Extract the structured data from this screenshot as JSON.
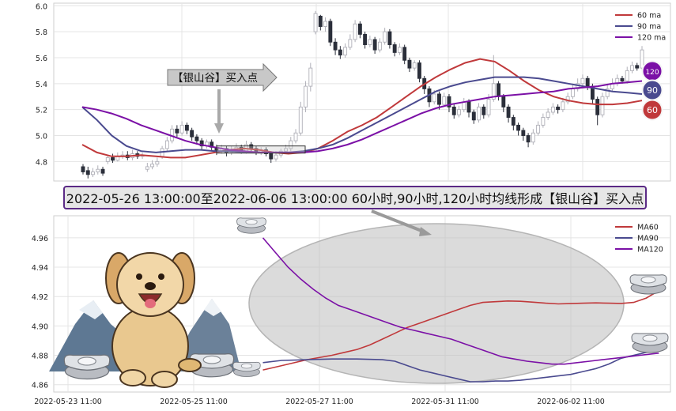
{
  "colors": {
    "ma60": "#c0393b",
    "ma90": "#4a4a8f",
    "ma120": "#7b10a6",
    "up_candle": "#b0b0b8",
    "down_candle": "#2b2f3a",
    "grid": "#e4e4e4"
  },
  "banner": {
    "text": "2022-05-26 13:00:00至2022-06-06 13:00:00 60小时,90小时,120小时均线形成【银山谷】买入点"
  },
  "top_callout": {
    "text": "【银山谷】买入点"
  },
  "badges": [
    {
      "label": "120",
      "color": "#7b10a6"
    },
    {
      "label": "90",
      "color": "#4a4a8f"
    },
    {
      "label": "60",
      "color": "#c0393b"
    }
  ],
  "chart_data": [
    {
      "type": "line",
      "panel": "candlestick-with-ma",
      "ylim": [
        4.65,
        6.02
      ],
      "yticks": [
        "6.0",
        "5.8",
        "5.6",
        "5.4",
        "5.2",
        "5.0",
        "4.8"
      ],
      "ytick_values": [
        6.0,
        5.8,
        5.6,
        5.4,
        5.2,
        5.0,
        4.8
      ],
      "legend_position": "top-right",
      "series": [
        {
          "name": "60 ma",
          "key": "ma60",
          "values": [
            4.93,
            4.87,
            4.84,
            4.84,
            4.85,
            4.84,
            4.83,
            4.83,
            4.85,
            4.87,
            4.89,
            4.9,
            4.89,
            4.87,
            4.86,
            4.87,
            4.9,
            4.96,
            5.03,
            5.08,
            5.14,
            5.22,
            5.3,
            5.38,
            5.45,
            5.51,
            5.56,
            5.59,
            5.57,
            5.5,
            5.42,
            5.35,
            5.3,
            5.27,
            5.25,
            5.24,
            5.24,
            5.25,
            5.27
          ]
        },
        {
          "name": "90 ma",
          "key": "ma90",
          "values": [
            5.22,
            5.12,
            5.0,
            4.92,
            4.88,
            4.87,
            4.88,
            4.89,
            4.89,
            4.88,
            4.88,
            4.87,
            4.87,
            4.87,
            4.87,
            4.88,
            4.9,
            4.93,
            4.98,
            5.04,
            5.1,
            5.16,
            5.22,
            5.28,
            5.34,
            5.38,
            5.41,
            5.43,
            5.45,
            5.45,
            5.45,
            5.44,
            5.42,
            5.4,
            5.38,
            5.36,
            5.34,
            5.33,
            5.32
          ]
        },
        {
          "name": "120 ma",
          "key": "ma120",
          "values": [
            5.22,
            5.2,
            5.17,
            5.13,
            5.08,
            5.04,
            5.0,
            4.96,
            4.93,
            4.91,
            4.89,
            4.88,
            4.87,
            4.87,
            4.87,
            4.87,
            4.88,
            4.9,
            4.93,
            4.97,
            5.02,
            5.07,
            5.12,
            5.17,
            5.21,
            5.24,
            5.26,
            5.28,
            5.3,
            5.31,
            5.32,
            5.33,
            5.34,
            5.36,
            5.37,
            5.38,
            5.4,
            5.41,
            5.42
          ]
        }
      ],
      "candles": [
        [
          4.76,
          4.72,
          4.78,
          4.7
        ],
        [
          4.73,
          4.7,
          4.76,
          4.67
        ],
        [
          4.7,
          4.72,
          4.75,
          4.68
        ],
        [
          4.72,
          4.74,
          4.77,
          4.7
        ],
        [
          4.74,
          4.71,
          4.76,
          4.69
        ],
        [
          4.8,
          4.83,
          4.85,
          4.78
        ],
        [
          4.83,
          4.81,
          4.86,
          4.79
        ],
        [
          4.81,
          4.84,
          4.87,
          4.8
        ],
        [
          4.84,
          4.85,
          4.88,
          4.82
        ],
        [
          4.85,
          4.83,
          4.88,
          4.81
        ],
        [
          4.83,
          4.86,
          4.89,
          4.81
        ],
        [
          4.86,
          4.84,
          4.88,
          4.82
        ],
        [
          4.84,
          4.85,
          4.87,
          4.82
        ],
        [
          4.74,
          4.76,
          4.79,
          4.72
        ],
        [
          4.76,
          4.78,
          4.81,
          4.74
        ],
        [
          4.78,
          4.8,
          4.83,
          4.76
        ],
        [
          4.84,
          4.9,
          4.92,
          4.82
        ],
        [
          4.9,
          4.96,
          4.99,
          4.88
        ],
        [
          4.96,
          5.05,
          5.08,
          4.94
        ],
        [
          5.05,
          5.02,
          5.08,
          4.99
        ],
        [
          5.02,
          5.08,
          5.11,
          5.0
        ],
        [
          5.08,
          5.04,
          5.1,
          5.01
        ],
        [
          5.04,
          4.99,
          5.06,
          4.96
        ],
        [
          4.99,
          4.96,
          5.01,
          4.93
        ],
        [
          4.96,
          4.92,
          4.98,
          4.89
        ],
        [
          4.92,
          4.95,
          4.97,
          4.9
        ],
        [
          4.95,
          4.91,
          4.97,
          4.88
        ],
        [
          4.91,
          4.88,
          4.93,
          4.85
        ],
        [
          4.88,
          4.9,
          4.93,
          4.86
        ],
        [
          4.9,
          4.87,
          4.92,
          4.84
        ],
        [
          4.87,
          4.89,
          4.92,
          4.85
        ],
        [
          4.89,
          4.91,
          4.94,
          4.87
        ],
        [
          4.91,
          4.88,
          4.93,
          4.86
        ],
        [
          4.88,
          4.93,
          4.96,
          4.86
        ],
        [
          4.93,
          4.9,
          4.95,
          4.88
        ],
        [
          4.9,
          4.87,
          4.92,
          4.85
        ],
        [
          4.87,
          4.89,
          4.91,
          4.85
        ],
        [
          4.89,
          4.86,
          4.91,
          4.84
        ],
        [
          4.86,
          4.82,
          4.88,
          4.79
        ],
        [
          4.82,
          4.85,
          4.88,
          4.8
        ],
        [
          4.85,
          4.88,
          4.9,
          4.83
        ],
        [
          4.88,
          4.9,
          4.93,
          4.86
        ],
        [
          4.9,
          4.96,
          4.99,
          4.88
        ],
        [
          4.96,
          5.02,
          5.05,
          4.94
        ],
        [
          5.02,
          5.22,
          5.26,
          5.0
        ],
        [
          5.22,
          5.38,
          5.42,
          5.18
        ],
        [
          5.38,
          5.52,
          5.56,
          5.34
        ],
        [
          5.8,
          5.94,
          5.96,
          5.78
        ],
        [
          5.92,
          5.84,
          5.93,
          5.81
        ],
        [
          5.84,
          5.88,
          5.91,
          5.8
        ],
        [
          5.88,
          5.72,
          5.9,
          5.69
        ],
        [
          5.72,
          5.66,
          5.75,
          5.62
        ],
        [
          5.66,
          5.62,
          5.69,
          5.59
        ],
        [
          5.62,
          5.68,
          5.71,
          5.6
        ],
        [
          5.68,
          5.74,
          5.78,
          5.66
        ],
        [
          5.74,
          5.86,
          5.89,
          5.72
        ],
        [
          5.86,
          5.78,
          5.88,
          5.75
        ],
        [
          5.78,
          5.7,
          5.8,
          5.67
        ],
        [
          5.7,
          5.74,
          5.77,
          5.68
        ],
        [
          5.74,
          5.66,
          5.76,
          5.63
        ],
        [
          5.66,
          5.72,
          5.75,
          5.64
        ],
        [
          5.72,
          5.8,
          5.83,
          5.7
        ],
        [
          5.8,
          5.7,
          5.82,
          5.67
        ],
        [
          5.7,
          5.64,
          5.72,
          5.61
        ],
        [
          5.64,
          5.68,
          5.71,
          5.62
        ],
        [
          5.68,
          5.58,
          5.7,
          5.55
        ],
        [
          5.58,
          5.52,
          5.6,
          5.49
        ],
        [
          5.52,
          5.56,
          5.58,
          5.5
        ],
        [
          5.56,
          5.44,
          5.58,
          5.41
        ],
        [
          5.44,
          5.36,
          5.46,
          5.32
        ],
        [
          5.36,
          5.26,
          5.38,
          5.22
        ],
        [
          5.26,
          5.32,
          5.35,
          5.24
        ],
        [
          5.32,
          5.24,
          5.34,
          5.2
        ],
        [
          5.24,
          5.3,
          5.33,
          5.22
        ],
        [
          5.3,
          5.22,
          5.32,
          5.18
        ],
        [
          5.22,
          5.16,
          5.24,
          5.13
        ],
        [
          5.16,
          5.2,
          5.23,
          5.14
        ],
        [
          5.2,
          5.26,
          5.29,
          5.18
        ],
        [
          5.26,
          5.18,
          5.28,
          5.14
        ],
        [
          5.18,
          5.12,
          5.2,
          5.09
        ],
        [
          5.12,
          5.22,
          5.25,
          5.1
        ],
        [
          5.22,
          5.16,
          5.24,
          5.13
        ],
        [
          5.16,
          5.28,
          5.32,
          5.14
        ],
        [
          5.28,
          5.4,
          5.62,
          5.26
        ],
        [
          5.4,
          5.3,
          5.42,
          5.27
        ],
        [
          5.3,
          5.22,
          5.32,
          5.18
        ],
        [
          5.22,
          5.14,
          5.24,
          5.1
        ],
        [
          5.14,
          5.08,
          5.16,
          5.04
        ],
        [
          5.08,
          5.04,
          5.1,
          5.0
        ],
        [
          5.04,
          5.0,
          5.06,
          4.96
        ],
        [
          5.0,
          4.95,
          5.02,
          4.91
        ],
        [
          4.95,
          5.02,
          5.05,
          4.93
        ],
        [
          5.02,
          5.08,
          5.11,
          5.0
        ],
        [
          5.08,
          5.14,
          5.17,
          5.06
        ],
        [
          5.14,
          5.18,
          5.21,
          5.12
        ],
        [
          5.18,
          5.22,
          5.25,
          5.16
        ],
        [
          5.22,
          5.2,
          5.24,
          5.17
        ],
        [
          5.2,
          5.26,
          5.29,
          5.18
        ],
        [
          5.26,
          5.3,
          5.33,
          5.24
        ],
        [
          5.3,
          5.36,
          5.4,
          5.28
        ],
        [
          5.36,
          5.4,
          5.44,
          5.34
        ],
        [
          5.4,
          5.44,
          5.47,
          5.38
        ],
        [
          5.44,
          5.38,
          5.46,
          5.35
        ],
        [
          5.38,
          5.28,
          5.4,
          5.24
        ],
        [
          5.28,
          5.16,
          5.3,
          5.08
        ],
        [
          5.16,
          5.3,
          5.33,
          5.14
        ],
        [
          5.3,
          5.36,
          5.4,
          5.28
        ],
        [
          5.36,
          5.4,
          5.44,
          5.34
        ],
        [
          5.4,
          5.44,
          5.47,
          5.38
        ],
        [
          5.44,
          5.42,
          5.46,
          5.4
        ],
        [
          5.42,
          5.5,
          5.53,
          5.4
        ],
        [
          5.5,
          5.54,
          5.57,
          5.48
        ],
        [
          5.54,
          5.52,
          5.56,
          5.5
        ],
        [
          5.52,
          5.66,
          5.69,
          5.5
        ]
      ]
    },
    {
      "type": "line",
      "panel": "ma-detail",
      "ylim": [
        4.855,
        4.975
      ],
      "yticks": [
        "4.96",
        "4.94",
        "4.92",
        "4.90",
        "4.88",
        "4.86"
      ],
      "ytick_values": [
        4.96,
        4.94,
        4.92,
        4.9,
        4.88,
        4.86
      ],
      "xticks": [
        "2022-05-23 11:00",
        "2022-05-25 11:00",
        "2022-05-27 11:00",
        "2022-05-31 11:00",
        "2022-06-02 11:00"
      ],
      "xtick_positions": [
        0,
        20,
        40,
        60,
        80
      ],
      "x_range": [
        0,
        97
      ],
      "legend_position": "top-right",
      "series": [
        {
          "name": "MA60",
          "key": "ma60",
          "x": [
            31,
            34,
            38,
            42,
            44,
            46,
            48,
            50,
            52,
            54,
            56,
            58,
            60,
            62,
            64,
            66,
            68,
            70,
            72,
            74,
            76,
            78,
            80,
            82,
            84,
            86,
            88,
            90,
            92,
            94
          ],
          "values": [
            4.87,
            4.873,
            4.877,
            4.88,
            4.882,
            4.884,
            4.887,
            4.891,
            4.895,
            4.899,
            4.902,
            4.905,
            4.908,
            4.911,
            4.914,
            4.916,
            4.9165,
            4.917,
            4.9168,
            4.9162,
            4.9155,
            4.915,
            4.9152,
            4.9155,
            4.9157,
            4.9155,
            4.9153,
            4.916,
            4.919,
            4.924
          ]
        },
        {
          "name": "MA90",
          "key": "ma90",
          "x": [
            31,
            34,
            38,
            42,
            46,
            50,
            52,
            54,
            56,
            58,
            60,
            62,
            64,
            66,
            68,
            70,
            72,
            74,
            76,
            78,
            80,
            82,
            84,
            86,
            88,
            90,
            92,
            94
          ],
          "values": [
            4.875,
            4.8765,
            4.877,
            4.8775,
            4.8775,
            4.877,
            4.876,
            4.873,
            4.87,
            4.868,
            4.866,
            4.864,
            4.862,
            4.862,
            4.8625,
            4.8625,
            4.863,
            4.864,
            4.865,
            4.866,
            4.867,
            4.869,
            4.871,
            4.874,
            4.878,
            4.88,
            4.882,
            4.884
          ]
        },
        {
          "name": "MA120",
          "key": "ma120",
          "x": [
            31,
            33,
            35,
            37,
            39,
            41,
            43,
            45,
            47,
            49,
            51,
            53,
            55,
            57,
            59,
            61,
            63,
            65,
            67,
            69,
            71,
            73,
            75,
            77,
            79,
            81,
            83,
            85,
            87,
            89,
            91,
            93,
            94
          ],
          "values": [
            4.96,
            4.95,
            4.94,
            4.932,
            4.925,
            4.919,
            4.914,
            4.911,
            4.908,
            4.905,
            4.902,
            4.899,
            4.897,
            4.895,
            4.893,
            4.891,
            4.888,
            4.885,
            4.882,
            4.879,
            4.8775,
            4.876,
            4.875,
            4.874,
            4.874,
            4.875,
            4.876,
            4.877,
            4.878,
            4.879,
            4.88,
            4.881,
            4.8815
          ]
        }
      ]
    }
  ]
}
